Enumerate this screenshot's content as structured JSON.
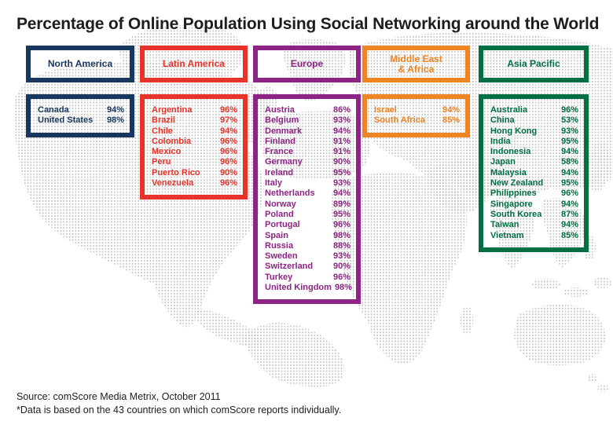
{
  "title": "Percentage of Online Population Using Social Networking around the World",
  "footer": {
    "source": "Source: comScore Media Metrix, October 2011",
    "note": "*Data is based on the 43 countries on which comScore reports individually."
  },
  "map": {
    "dot_color": "#bdbdbd"
  },
  "chart_data": {
    "type": "table",
    "title": "Percentage of Online Population Using Social Networking around the World",
    "groups": [
      {
        "region": "North America",
        "color": "#17375E",
        "label_lines": [
          "North America"
        ],
        "countries": [
          {
            "name": "Canada",
            "value": 94,
            "pct": "94%"
          },
          {
            "name": "United States",
            "value": 98,
            "pct": "98%"
          }
        ]
      },
      {
        "region": "Latin America",
        "color": "#E7332A",
        "label_lines": [
          "Latin America"
        ],
        "countries": [
          {
            "name": "Argentina",
            "value": 96,
            "pct": "96%"
          },
          {
            "name": "Brazil",
            "value": 97,
            "pct": "97%"
          },
          {
            "name": "Chile",
            "value": 94,
            "pct": "94%"
          },
          {
            "name": "Colombia",
            "value": 96,
            "pct": "96%"
          },
          {
            "name": "Mexico",
            "value": 96,
            "pct": "96%"
          },
          {
            "name": "Peru",
            "value": 96,
            "pct": "96%"
          },
          {
            "name": "Puerto Rico",
            "value": 90,
            "pct": "90%"
          },
          {
            "name": "Venezuela",
            "value": 96,
            "pct": "96%"
          }
        ]
      },
      {
        "region": "Europe",
        "color": "#8E2386",
        "label_lines": [
          "Europe"
        ],
        "countries": [
          {
            "name": "Austria",
            "value": 86,
            "pct": "86%"
          },
          {
            "name": "Belgium",
            "value": 93,
            "pct": "93%"
          },
          {
            "name": "Denmark",
            "value": 94,
            "pct": "94%"
          },
          {
            "name": "Finland",
            "value": 91,
            "pct": "91%"
          },
          {
            "name": "France",
            "value": 91,
            "pct": "91%"
          },
          {
            "name": "Germany",
            "value": 90,
            "pct": "90%"
          },
          {
            "name": "Ireland",
            "value": 95,
            "pct": "95%"
          },
          {
            "name": "Italy",
            "value": 93,
            "pct": "93%"
          },
          {
            "name": "Netherlands",
            "value": 94,
            "pct": "94%"
          },
          {
            "name": "Norway",
            "value": 89,
            "pct": "89%"
          },
          {
            "name": "Poland",
            "value": 95,
            "pct": "95%"
          },
          {
            "name": "Portugal",
            "value": 96,
            "pct": "96%"
          },
          {
            "name": "Spain",
            "value": 98,
            "pct": "98%"
          },
          {
            "name": "Russia",
            "value": 88,
            "pct": "88%"
          },
          {
            "name": "Sweden",
            "value": 93,
            "pct": "93%"
          },
          {
            "name": "Switzerland",
            "value": 90,
            "pct": "90%"
          },
          {
            "name": "Turkey",
            "value": 96,
            "pct": "96%"
          },
          {
            "name": "United Kingdom",
            "value": 98,
            "pct": "98%"
          }
        ]
      },
      {
        "region": "Middle East & Africa",
        "color": "#EE8422",
        "label_lines": [
          "Middle East",
          "& Africa"
        ],
        "countries": [
          {
            "name": "Israel",
            "value": 94,
            "pct": "94%"
          },
          {
            "name": "South Africa",
            "value": 85,
            "pct": "85%"
          }
        ]
      },
      {
        "region": "Asia Pacific",
        "color": "#007042",
        "label_lines": [
          "Asia Pacific"
        ],
        "countries": [
          {
            "name": "Australia",
            "value": 96,
            "pct": "96%"
          },
          {
            "name": "China",
            "value": 53,
            "pct": "53%"
          },
          {
            "name": "Hong Kong",
            "value": 93,
            "pct": "93%"
          },
          {
            "name": "India",
            "value": 95,
            "pct": "95%"
          },
          {
            "name": "Indonesia",
            "value": 94,
            "pct": "94%"
          },
          {
            "name": "Japan",
            "value": 58,
            "pct": "58%"
          },
          {
            "name": "Malaysia",
            "value": 94,
            "pct": "94%"
          },
          {
            "name": "New Zealand",
            "value": 95,
            "pct": "95%"
          },
          {
            "name": "Philippines",
            "value": 96,
            "pct": "96%"
          },
          {
            "name": "Singapore",
            "value": 94,
            "pct": "94%"
          },
          {
            "name": "South Korea",
            "value": 87,
            "pct": "87%"
          },
          {
            "name": "Taiwan",
            "value": 94,
            "pct": "94%"
          },
          {
            "name": "Vietnam",
            "value": 85,
            "pct": "85%"
          }
        ]
      }
    ]
  }
}
